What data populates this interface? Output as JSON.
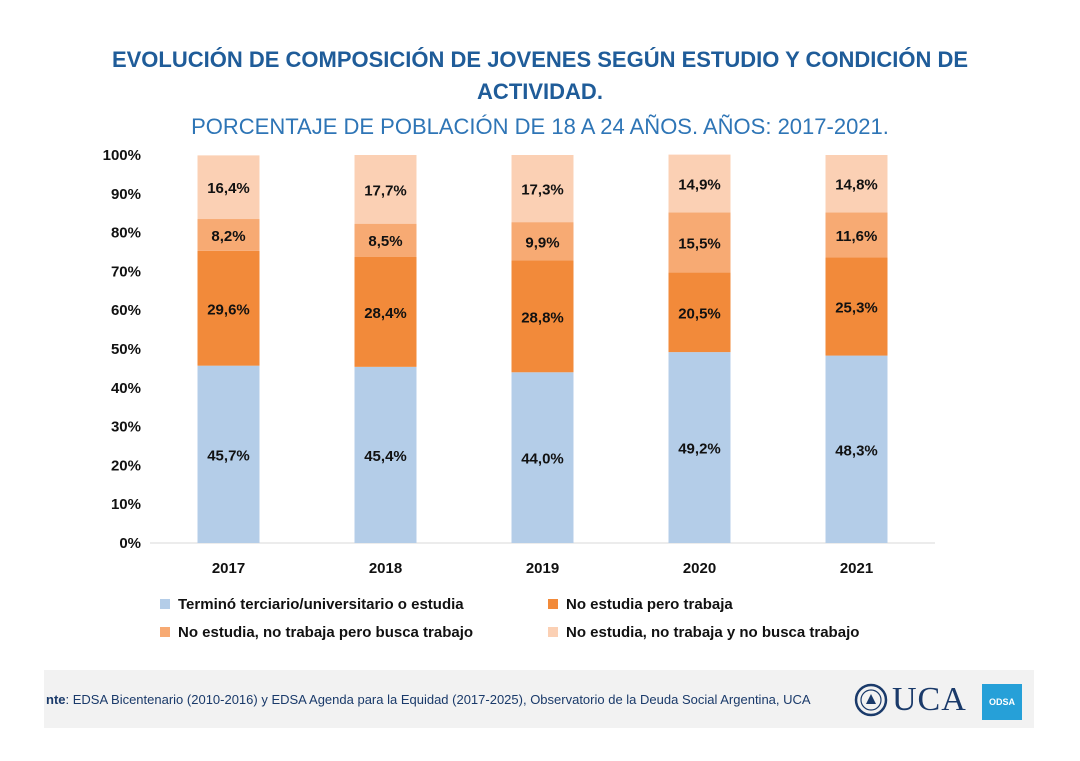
{
  "header": {
    "title_line1": "EVOLUCIÓN DE COMPOSICIÓN DE JOVENES SEGÚN ESTUDIO Y CONDICIÓN DE",
    "title_line2": "ACTIVIDAD.",
    "subtitle": "PORCENTAJE DE POBLACIÓN DE 18 A 24 AÑOS. AÑOS: 2017-2021."
  },
  "chart_data": {
    "type": "bar",
    "stacked": true,
    "categories": [
      "2017",
      "2018",
      "2019",
      "2020",
      "2021"
    ],
    "ylim": [
      0,
      100
    ],
    "yticks": [
      "0%",
      "10%",
      "20%",
      "30%",
      "40%",
      "50%",
      "60%",
      "70%",
      "80%",
      "90%",
      "100%"
    ],
    "series": [
      {
        "name": "Terminó terciario/universitario o estudia",
        "color": "#b4cde8",
        "values": [
          45.7,
          45.4,
          44.0,
          49.2,
          48.3
        ],
        "labels": [
          "45,7%",
          "45,4%",
          "44,0%",
          "49,2%",
          "48,3%"
        ]
      },
      {
        "name": "No estudia pero trabaja",
        "color": "#f28a3a",
        "values": [
          29.6,
          28.4,
          28.8,
          20.5,
          25.3
        ],
        "labels": [
          "29,6%",
          "28,4%",
          "28,8%",
          "20,5%",
          "25,3%"
        ]
      },
      {
        "name": "No estudia, no trabaja pero busca trabajo",
        "color": "#f7aa73",
        "values": [
          8.2,
          8.5,
          9.9,
          15.5,
          11.6
        ],
        "labels": [
          "8,2%",
          "8,5%",
          "9,9%",
          "15,5%",
          "11,6%"
        ]
      },
      {
        "name": "No estudia, no trabaja y no busca trabajo",
        "color": "#fbd0b4",
        "values": [
          16.4,
          17.7,
          17.3,
          14.9,
          14.8
        ],
        "labels": [
          "16,4%",
          "17,7%",
          "17,3%",
          "14,9%",
          "14,8%"
        ]
      }
    ],
    "legend_position": "bottom"
  },
  "footer": {
    "source_label": "nte",
    "source_text": ": EDSA Bicentenario (2010-2016) y EDSA Agenda para la Equidad (2017-2025), Observatorio de la Deuda Social Argentina, UCA",
    "logo_text": "UCA",
    "badge_text": "ODSA"
  }
}
